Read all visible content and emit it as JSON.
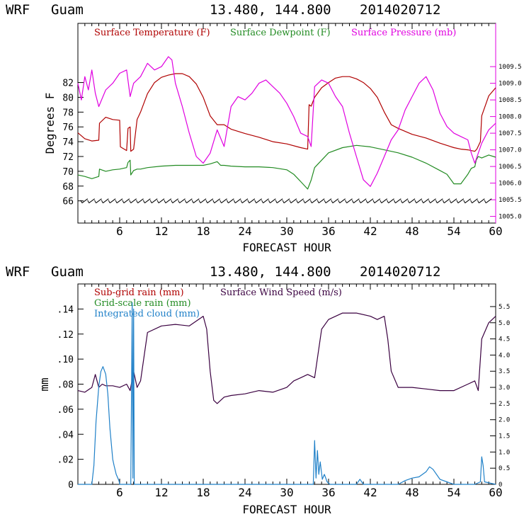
{
  "colors": {
    "temperature": "#b00000",
    "dewpoint": "#228b22",
    "pressure": "#e000e0",
    "wind_speed": "#3a0040",
    "cloud": "#1f80c8",
    "axis": "#000000"
  },
  "chart_data": [
    {
      "type": "line",
      "header": {
        "model": "WRF",
        "location": "Guam",
        "coords": "13.480, 144.800",
        "init": "2014020712"
      },
      "xlabel": "FORECAST HOUR",
      "ylabel": "Degrees F",
      "xlim": [
        0,
        60
      ],
      "ylim": [
        63,
        90
      ],
      "xticks": [
        "6",
        "12",
        "18",
        "24",
        "30",
        "36",
        "42",
        "48",
        "54",
        "60"
      ],
      "yticks": [
        "66",
        "68",
        "70",
        "72",
        "74",
        "76",
        "78",
        "80",
        "82"
      ],
      "y2lim": [
        1004.8,
        1010.8
      ],
      "y2ticks": [
        "1005.0",
        "1005.5",
        "1006.0",
        "1006.5",
        "1007.0",
        "1007.5",
        "1008.0",
        "1008.5",
        "1009.0",
        "1009.5"
      ],
      "legend": [
        "Surface Temperature (F)",
        "Surface Dewpoint (F)",
        "Surface Pressure (mb)"
      ],
      "series": [
        {
          "name": "Surface Temperature (F)",
          "axis": "left",
          "x": [
            0,
            1,
            2,
            3,
            3.1,
            4,
            5,
            6,
            6.1,
            7,
            7.2,
            7.5,
            7.6,
            8,
            8.5,
            9,
            10,
            11,
            12,
            13,
            14,
            15,
            16,
            17,
            18,
            19,
            20,
            21,
            22,
            24,
            26,
            28,
            30,
            32,
            33,
            33.2,
            33.5,
            34,
            35,
            36,
            37,
            38,
            39,
            40,
            41,
            42,
            43,
            44,
            45,
            46,
            48,
            50,
            52,
            54,
            55,
            56,
            57,
            57.3,
            57.8,
            58,
            59,
            60
          ],
          "values": [
            75.2,
            74.4,
            74.1,
            74.2,
            76.5,
            77.3,
            77.0,
            76.9,
            73.3,
            72.8,
            75.8,
            76.0,
            72.7,
            73.0,
            77.0,
            78.0,
            80.5,
            82.0,
            82.7,
            83.0,
            83.2,
            83.2,
            82.8,
            81.8,
            80.0,
            77.5,
            76.3,
            76.3,
            75.7,
            75.1,
            74.6,
            74.0,
            73.7,
            73.2,
            73.0,
            79.0,
            78.8,
            80.0,
            81.3,
            82.0,
            82.6,
            82.8,
            82.8,
            82.5,
            82.0,
            81.2,
            80.0,
            78.0,
            76.3,
            75.8,
            75.0,
            74.5,
            73.8,
            73.2,
            73.0,
            72.9,
            72.7,
            73.0,
            74.0,
            77.5,
            80.2,
            81.3
          ]
        },
        {
          "name": "Surface Dewpoint (F)",
          "axis": "left",
          "x": [
            0,
            1,
            2,
            3,
            3.1,
            4,
            5,
            6,
            7,
            7.2,
            7.5,
            7.6,
            8,
            8.5,
            9,
            10,
            12,
            14,
            16,
            18,
            19,
            20,
            20.5,
            21,
            22,
            24,
            26,
            28,
            30,
            31,
            32,
            33,
            33.5,
            34,
            36,
            38,
            40,
            42,
            44,
            46,
            48,
            50,
            52,
            53,
            54,
            55,
            56,
            56.5,
            57,
            57.2,
            57.5,
            58,
            59,
            60
          ],
          "values": [
            69.5,
            69.3,
            69.0,
            69.3,
            70.3,
            70.0,
            70.2,
            70.3,
            70.5,
            71.2,
            71.5,
            69.5,
            70.1,
            70.3,
            70.3,
            70.5,
            70.7,
            70.8,
            70.8,
            70.8,
            71.0,
            71.3,
            70.8,
            70.8,
            70.7,
            70.6,
            70.6,
            70.5,
            70.2,
            69.6,
            68.6,
            67.6,
            68.8,
            70.5,
            72.5,
            73.2,
            73.5,
            73.3,
            72.9,
            72.5,
            71.9,
            71.1,
            70.1,
            69.6,
            68.3,
            68.3,
            69.6,
            70.4,
            70.6,
            71.5,
            72.0,
            71.8,
            72.2,
            71.9
          ]
        },
        {
          "name": "Surface Pressure (mb)",
          "axis": "right",
          "x": [
            0,
            0.5,
            1,
            1.5,
            2,
            2.5,
            3,
            4,
            5,
            6,
            7,
            7.5,
            8,
            9,
            10,
            11,
            12,
            13,
            13.5,
            14,
            15,
            16,
            17,
            18,
            19,
            20,
            21,
            22,
            23,
            24,
            25,
            26,
            27,
            28,
            29,
            30,
            31,
            32,
            33,
            33.5,
            34,
            35,
            36,
            37,
            38,
            39,
            40,
            41,
            42,
            43,
            44,
            45,
            46,
            47,
            48,
            49,
            50,
            51,
            52,
            53,
            54,
            55,
            56,
            56.5,
            57,
            58,
            59,
            60
          ],
          "values": [
            1009.0,
            1008.5,
            1009.2,
            1008.8,
            1009.4,
            1008.7,
            1008.3,
            1008.8,
            1009.0,
            1009.3,
            1009.4,
            1008.6,
            1009.0,
            1009.2,
            1009.6,
            1009.4,
            1009.5,
            1009.8,
            1009.7,
            1009.0,
            1008.3,
            1007.5,
            1006.8,
            1006.6,
            1006.9,
            1007.6,
            1007.1,
            1008.3,
            1008.6,
            1008.5,
            1008.7,
            1009.0,
            1009.1,
            1008.9,
            1008.7,
            1008.4,
            1008.0,
            1007.5,
            1007.4,
            1007.1,
            1008.9,
            1009.1,
            1009.0,
            1008.6,
            1008.3,
            1007.5,
            1006.8,
            1006.1,
            1005.9,
            1006.3,
            1006.8,
            1007.3,
            1007.6,
            1008.2,
            1008.6,
            1009.0,
            1009.2,
            1008.8,
            1008.1,
            1007.7,
            1007.5,
            1007.4,
            1007.3,
            1006.9,
            1006.6,
            1007.2,
            1007.6,
            1007.8
          ]
        }
      ],
      "wind_barbs": "hourly wind barbs along the bottom"
    },
    {
      "type": "line",
      "header": {
        "model": "WRF",
        "location": "Guam",
        "coords": "13.480, 144.800",
        "init": "2014020712"
      },
      "xlabel": "FORECAST HOUR",
      "ylabel": "mm",
      "xlim": [
        0,
        60
      ],
      "ylim": [
        0,
        0.16
      ],
      "xticks": [
        "6",
        "12",
        "18",
        "24",
        "30",
        "36",
        "42",
        "48",
        "54",
        "60"
      ],
      "yticks": [
        "0",
        ".02",
        ".04",
        ".06",
        ".08",
        ".10",
        ".12",
        ".14"
      ],
      "y2lim": [
        0,
        6.2
      ],
      "y2ticks": [
        "0",
        "0.5",
        "1.0",
        "1.5",
        "2.0",
        "2.5",
        "3.0",
        "3.5",
        "4.0",
        "4.5",
        "5.0",
        "5.5"
      ],
      "legend": [
        "Sub-grid rain (mm)",
        "Surface Wind Speed (m/s)",
        "Grid-scale rain (mm)",
        "Integrated cloud (mm)"
      ],
      "series": [
        {
          "name": "Surface Wind Speed (m/s)",
          "axis": "right",
          "x": [
            0,
            1,
            2,
            2.5,
            3,
            3.5,
            4,
            5,
            6,
            7,
            7.5,
            8,
            8.5,
            9,
            10,
            12,
            14,
            16,
            18,
            18.5,
            19,
            19.5,
            20,
            21,
            22,
            24,
            26,
            28,
            30,
            31,
            32,
            33,
            34,
            35,
            36,
            38,
            40,
            42,
            43,
            44,
            44.5,
            45,
            46,
            48,
            50,
            52,
            54,
            56,
            57,
            57.5,
            58,
            59,
            60
          ],
          "values": [
            2.9,
            2.85,
            3.0,
            3.4,
            3.0,
            3.1,
            3.05,
            3.05,
            3.0,
            3.1,
            2.9,
            3.5,
            3.0,
            3.2,
            4.7,
            4.9,
            4.95,
            4.9,
            5.2,
            4.8,
            3.5,
            2.6,
            2.5,
            2.7,
            2.75,
            2.8,
            2.9,
            2.85,
            3.0,
            3.2,
            3.3,
            3.4,
            3.3,
            4.8,
            5.1,
            5.3,
            5.3,
            5.2,
            5.1,
            5.2,
            4.5,
            3.5,
            3.0,
            3.0,
            2.95,
            2.9,
            2.9,
            3.1,
            3.2,
            2.9,
            4.5,
            5.0,
            5.2
          ]
        },
        {
          "name": "Integrated cloud (mm)",
          "axis": "left",
          "x": [
            0,
            2,
            2.3,
            2.6,
            3,
            3.3,
            3.6,
            4,
            4.3,
            4.6,
            5,
            5.2,
            5.5,
            5.9,
            6,
            7,
            7.6,
            7.8,
            7.9,
            8,
            8.1,
            9,
            20,
            30,
            33,
            33.8,
            34,
            34.2,
            34.4,
            34.6,
            34.8,
            35.1,
            35.4,
            35.8,
            36.2,
            38,
            40,
            40.5,
            41,
            42,
            46,
            47,
            48,
            49,
            50,
            50.5,
            51,
            52,
            53,
            54,
            57,
            57.8,
            58,
            58.2,
            58.4,
            60
          ],
          "values": [
            0,
            0,
            0.015,
            0.05,
            0.078,
            0.09,
            0.094,
            0.088,
            0.072,
            0.045,
            0.02,
            0.015,
            0.008,
            0.003,
            0,
            0,
            0,
            0.145,
            0.005,
            0.14,
            0,
            0,
            0,
            0,
            0,
            0,
            0.035,
            0.005,
            0.027,
            0.008,
            0.018,
            0.004,
            0.008,
            0.002,
            0,
            0,
            0,
            0.004,
            0,
            0,
            0,
            0.003,
            0.005,
            0.006,
            0.01,
            0.014,
            0.012,
            0.004,
            0.002,
            0,
            0,
            0.002,
            0.022,
            0.015,
            0.002,
            0
          ]
        }
      ]
    }
  ]
}
